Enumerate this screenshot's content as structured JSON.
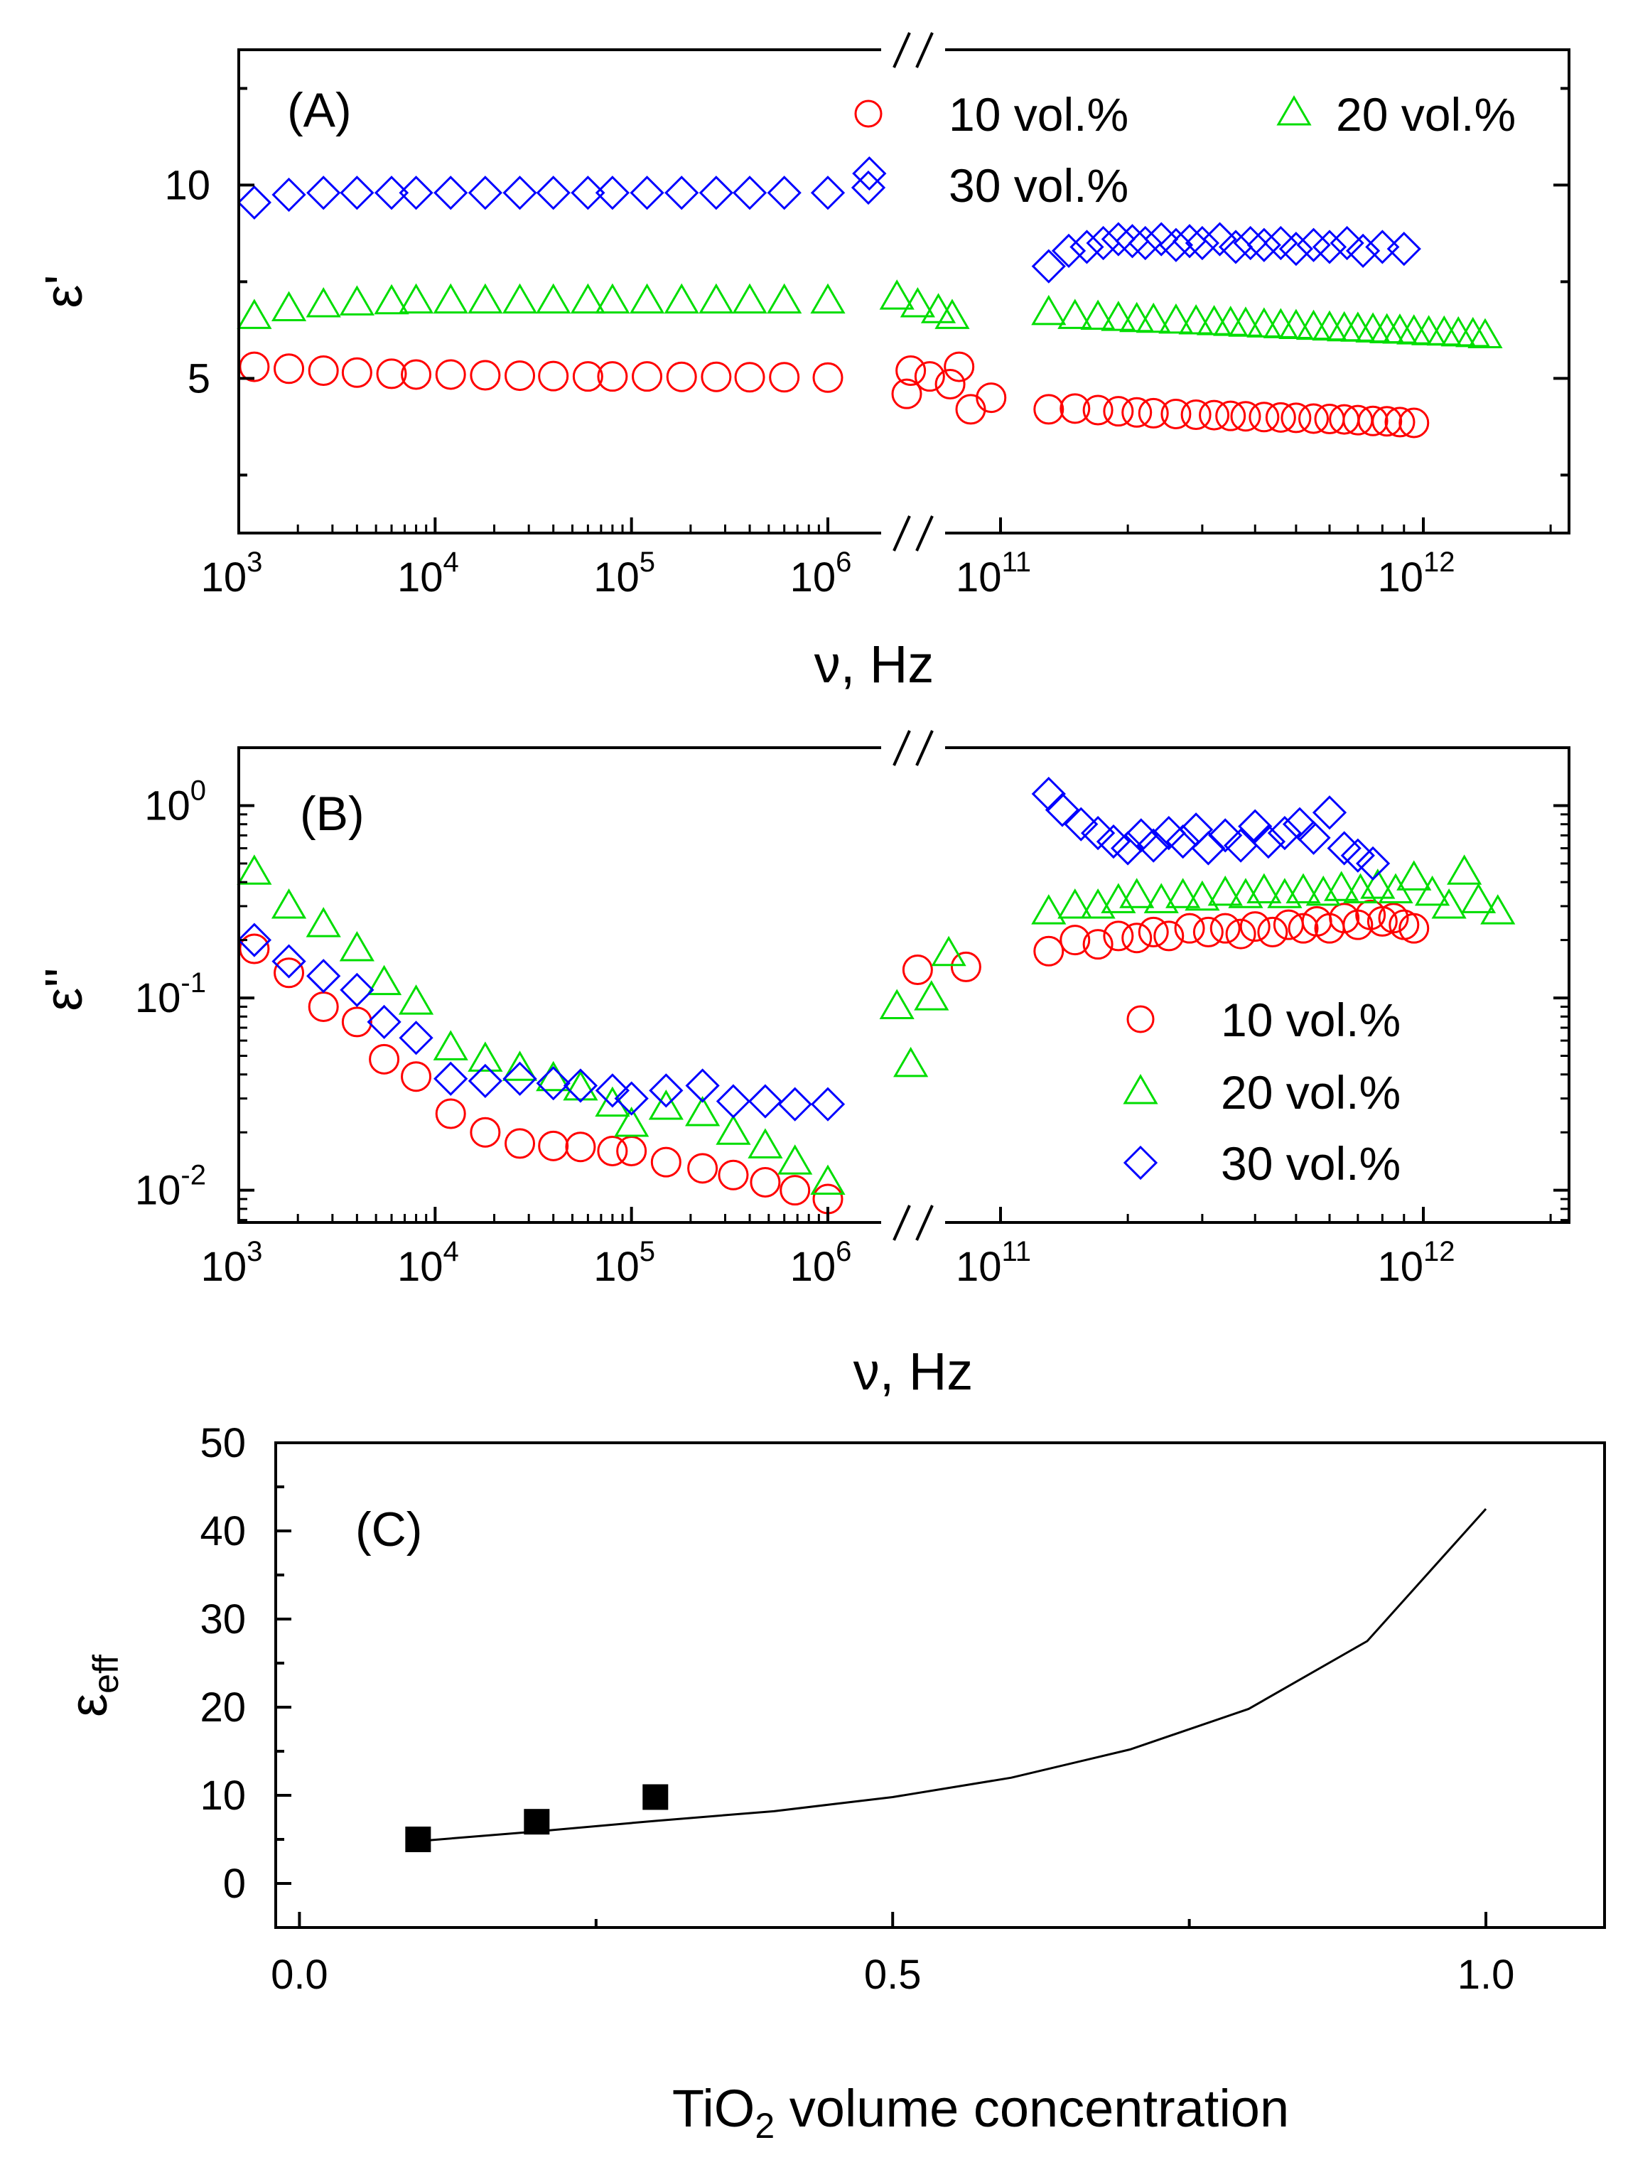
{
  "figure": {
    "background": "#ffffff"
  },
  "colors": {
    "s10": "#ff0000",
    "s20": "#00dd00",
    "s30": "#0000ff",
    "black": "#000000"
  },
  "chart_data": [
    {
      "id": "A",
      "type": "scatter",
      "panel_label": "(A)",
      "xlabel": "ν, Hz",
      "ylabel": "ε'",
      "xscale": "log",
      "xbreak": {
        "low_segment": [
          1000,
          1000000
        ],
        "high_segment": [
          100000000000,
          1000000000000
        ],
        "break_symbol": "//"
      },
      "ylim": [
        1,
        13.5
      ],
      "yticks": [
        5,
        10
      ],
      "xticks": [
        {
          "base": "10",
          "exp": "3",
          "value": 1000
        },
        {
          "base": "10",
          "exp": "4",
          "value": 10000
        },
        {
          "base": "10",
          "exp": "5",
          "value": 100000
        },
        {
          "base": "10",
          "exp": "6",
          "value": 1000000
        },
        {
          "base": "10",
          "exp": "11",
          "value": 100000000000
        },
        {
          "base": "10",
          "exp": "12",
          "value": 1000000000000
        }
      ],
      "legend": [
        {
          "series": "10 vol.%",
          "marker": "circle",
          "color": "#ff0000"
        },
        {
          "series": "20 vol.%",
          "marker": "triangle",
          "color": "#00dd00"
        },
        {
          "series": "30 vol.%",
          "marker": "diamond",
          "color": "#0000ff"
        }
      ],
      "series": [
        {
          "name": "10 vol.%",
          "marker": "circle",
          "color": "#ff0000",
          "low": {
            "x": [
              1200,
              1800,
              2700,
              4000,
              6000,
              8000,
              12000,
              18000,
              27000,
              40000,
              60000,
              80000,
              120000,
              180000,
              270000,
              400000,
              600000,
              1000000
            ],
            "y": [
              5.3,
              5.25,
              5.2,
              5.15,
              5.12,
              5.1,
              5.1,
              5.08,
              5.07,
              5.06,
              5.05,
              5.05,
              5.05,
              5.04,
              5.04,
              5.03,
              5.03,
              5.02
            ]
          },
          "mid": {
            "x": [
              2.2,
              2.9
            ],
            "y": [
              5.2,
              5.3
            ]
          },
          "high": {
            "x": [
              60000000000,
              68000000000,
              76000000000,
              85000000000,
              95000000000,
              130000000000,
              150000000000,
              170000000000,
              190000000000,
              210000000000,
              230000000000,
              260000000000,
              290000000000,
              320000000000,
              350000000000,
              380000000000,
              420000000000,
              460000000000,
              500000000000,
              550000000000,
              600000000000,
              650000000000,
              700000000000,
              760000000000,
              820000000000,
              880000000000,
              950000000000
            ],
            "y": [
              4.6,
              5.05,
              4.85,
              4.2,
              4.5,
              4.2,
              4.22,
              4.18,
              4.15,
              4.12,
              4.1,
              4.08,
              4.06,
              4.05,
              4.03,
              4.02,
              4.0,
              3.99,
              3.98,
              3.96,
              3.95,
              3.94,
              3.92,
              3.9,
              3.89,
              3.87,
              3.85
            ]
          }
        },
        {
          "name": "20 vol.%",
          "marker": "triangle",
          "color": "#00dd00",
          "low": {
            "x": [
              1200,
              1800,
              2700,
              4000,
              6000,
              8000,
              12000,
              18000,
              27000,
              40000,
              60000,
              80000,
              120000,
              180000,
              270000,
              400000,
              600000,
              1000000
            ],
            "y": [
              6.6,
              6.8,
              6.9,
              6.95,
              6.98,
              7.0,
              7.0,
              7.0,
              7.0,
              7.0,
              7.0,
              7.0,
              7.0,
              7.0,
              7.0,
              7.0,
              7.0,
              7.0
            ]
          },
          "mid": {
            "x": [
              2.0,
              2.3,
              2.6,
              2.8
            ],
            "y": [
              7.1,
              6.9,
              6.75,
              6.6
            ]
          },
          "high": {
            "x": [
              130000000000,
              150000000000,
              170000000000,
              190000000000,
              210000000000,
              230000000000,
              260000000000,
              290000000000,
              320000000000,
              350000000000,
              380000000000,
              420000000000,
              460000000000,
              500000000000,
              550000000000,
              600000000000,
              650000000000,
              700000000000,
              760000000000,
              820000000000,
              880000000000,
              950000000000,
              1030000000000,
              1120000000000,
              1210000000000,
              1310000000000,
              1400000000000
            ],
            "y": [
              6.7,
              6.6,
              6.58,
              6.55,
              6.52,
              6.5,
              6.48,
              6.46,
              6.44,
              6.42,
              6.4,
              6.38,
              6.36,
              6.34,
              6.32,
              6.3,
              6.28,
              6.27,
              6.25,
              6.23,
              6.22,
              6.2,
              6.18,
              6.17,
              6.15,
              6.13,
              6.1
            ]
          }
        },
        {
          "name": "30 vol.%",
          "marker": "diamond",
          "color": "#0000ff",
          "low": {
            "x": [
              1200,
              1800,
              2700,
              4000,
              6000,
              8000,
              12000,
              18000,
              27000,
              40000,
              60000,
              80000,
              120000,
              180000,
              270000,
              400000,
              600000,
              1000000
            ],
            "y": [
              9.55,
              9.75,
              9.8,
              9.8,
              9.8,
              9.8,
              9.8,
              9.8,
              9.8,
              9.8,
              9.8,
              9.8,
              9.8,
              9.8,
              9.8,
              9.8,
              9.8,
              9.8
            ]
          },
          "mid": {
            "x": [
              1.6
            ],
            "y": [
              10.3
            ]
          },
          "high": {
            "x": [
              130000000000,
              145000000000,
              160000000000,
              175000000000,
              190000000000,
              205000000000,
              220000000000,
              240000000000,
              260000000000,
              280000000000,
              300000000000,
              330000000000,
              360000000000,
              390000000000,
              420000000000,
              460000000000,
              500000000000,
              550000000000,
              600000000000,
              660000000000,
              720000000000,
              800000000000,
              900000000000
            ],
            "y": [
              7.9,
              8.3,
              8.4,
              8.5,
              8.6,
              8.55,
              8.5,
              8.6,
              8.45,
              8.55,
              8.5,
              8.6,
              8.4,
              8.5,
              8.45,
              8.5,
              8.35,
              8.45,
              8.4,
              8.5,
              8.3,
              8.4,
              8.35
            ]
          }
        }
      ]
    },
    {
      "id": "B",
      "type": "scatter",
      "panel_label": "(B)",
      "xlabel": "ν, Hz",
      "ylabel": "ε''",
      "xscale": "log",
      "yscale": "log",
      "ylim": [
        0.0068,
        2.0
      ],
      "yticks": [
        {
          "base": "10",
          "exp": "0",
          "value": 1
        },
        {
          "base": "10",
          "exp": "-1",
          "value": 0.1
        },
        {
          "base": "10",
          "exp": "-2",
          "value": 0.01
        }
      ],
      "xticks": [
        {
          "base": "10",
          "exp": "3",
          "value": 1000
        },
        {
          "base": "10",
          "exp": "4",
          "value": 10000
        },
        {
          "base": "10",
          "exp": "5",
          "value": 100000
        },
        {
          "base": "10",
          "exp": "6",
          "value": 1000000
        },
        {
          "base": "10",
          "exp": "11",
          "value": 100000000000
        },
        {
          "base": "10",
          "exp": "12",
          "value": 1000000000000
        }
      ],
      "legend": [
        {
          "series": "10 vol.%",
          "marker": "circle",
          "color": "#ff0000"
        },
        {
          "series": "20 vol.%",
          "marker": "triangle",
          "color": "#00dd00"
        },
        {
          "series": "30 vol.%",
          "marker": "diamond",
          "color": "#0000ff"
        }
      ],
      "series": [
        {
          "name": "10 vol.%",
          "marker": "circle",
          "color": "#ff0000",
          "low": {
            "x": [
              1200,
              1800,
              2700,
              4000,
              5500,
              8000,
              12000,
              18000,
              27000,
              40000,
              55000,
              80000,
              100000,
              150000,
              230000,
              330000,
              480000,
              680000,
              1000000
            ],
            "y": [
              0.18,
              0.135,
              0.09,
              0.075,
              0.048,
              0.039,
              0.025,
              0.02,
              0.0175,
              0.017,
              0.0168,
              0.016,
              0.016,
              0.014,
              0.013,
              0.012,
              0.011,
              0.01,
              0.009
            ]
          },
          "mid": {
            "x": [
              2.3,
              3.0
            ],
            "y": [
              0.14,
              0.145
            ]
          },
          "high": {
            "x": [
              130000000000,
              150000000000,
              170000000000,
              190000000000,
              210000000000,
              230000000000,
              250000000000,
              280000000000,
              310000000000,
              340000000000,
              370000000000,
              400000000000,
              440000000000,
              480000000000,
              520000000000,
              560000000000,
              600000000000,
              650000000000,
              700000000000,
              750000000000,
              800000000000,
              850000000000,
              900000000000,
              950000000000
            ],
            "y": [
              0.175,
              0.2,
              0.19,
              0.21,
              0.205,
              0.22,
              0.21,
              0.23,
              0.22,
              0.23,
              0.215,
              0.235,
              0.22,
              0.24,
              0.23,
              0.25,
              0.23,
              0.26,
              0.24,
              0.27,
              0.25,
              0.26,
              0.24,
              0.23
            ]
          }
        },
        {
          "name": "20 vol.%",
          "marker": "triangle",
          "color": "#00dd00",
          "low": {
            "x": [
              1200,
              1800,
              2700,
              4000,
              5500,
              8000,
              12000,
              18000,
              27000,
              40000,
              55000,
              80000,
              100000,
              150000,
              230000,
              330000,
              480000,
              680000,
              1000000
            ],
            "y": [
              0.45,
              0.3,
              0.24,
              0.18,
              0.12,
              0.095,
              0.055,
              0.048,
              0.043,
              0.038,
              0.034,
              0.028,
              0.022,
              0.027,
              0.025,
              0.02,
              0.017,
              0.014,
              0.011
            ]
          },
          "mid": {
            "x": [
              2.0,
              2.2,
              2.5,
              2.75
            ],
            "y": [
              0.09,
              0.045,
              0.1,
              0.17
            ]
          },
          "high": {
            "x": [
              130000000000,
              150000000000,
              170000000000,
              190000000000,
              210000000000,
              240000000000,
              270000000000,
              300000000000,
              340000000000,
              380000000000,
              420000000000,
              470000000000,
              520000000000,
              580000000000,
              640000000000,
              710000000000,
              780000000000,
              860000000000,
              950000000000,
              1050000000000,
              1150000000000,
              1250000000000,
              1350000000000,
              1500000000000
            ],
            "y": [
              0.28,
              0.3,
              0.3,
              0.32,
              0.34,
              0.32,
              0.34,
              0.33,
              0.35,
              0.34,
              0.36,
              0.34,
              0.36,
              0.35,
              0.37,
              0.36,
              0.38,
              0.36,
              0.42,
              0.35,
              0.3,
              0.45,
              0.32,
              0.28
            ]
          }
        },
        {
          "name": "30 vol.%",
          "marker": "diamond",
          "color": "#0000ff",
          "low": {
            "x": [
              1200,
              1800,
              2700,
              4000,
              5500,
              8000,
              12000,
              18000,
              27000,
              40000,
              55000,
              80000,
              100000,
              150000,
              230000,
              330000,
              480000,
              680000,
              1000000
            ],
            "y": [
              0.2,
              0.155,
              0.13,
              0.11,
              0.075,
              0.062,
              0.038,
              0.037,
              0.038,
              0.036,
              0.035,
              0.033,
              0.03,
              0.033,
              0.035,
              0.029,
              0.029,
              0.028,
              0.028
            ]
          },
          "high": {
            "x": [
              130000000000,
              140000000000,
              155000000000,
              170000000000,
              185000000000,
              200000000000,
              215000000000,
              230000000000,
              250000000000,
              270000000000,
              290000000000,
              310000000000,
              340000000000,
              370000000000,
              400000000000,
              430000000000,
              470000000000,
              510000000000,
              550000000000,
              600000000000,
              650000000000,
              700000000000,
              760000000000
            ],
            "y": [
              1.15,
              0.95,
              0.8,
              0.72,
              0.65,
              0.6,
              0.7,
              0.62,
              0.72,
              0.65,
              0.75,
              0.6,
              0.7,
              0.62,
              0.78,
              0.65,
              0.72,
              0.8,
              0.68,
              0.92,
              0.6,
              0.55,
              0.5
            ]
          }
        }
      ]
    },
    {
      "id": "C",
      "type": "line",
      "panel_label": "(C)",
      "xlabel_prefix": "TiO",
      "xlabel_sub": "2",
      "xlabel_suffix": " volume concentration",
      "ylabel_main": "ε",
      "ylabel_sub": "eff",
      "xlim": [
        -0.02,
        1.1
      ],
      "ylim": [
        -5,
        50
      ],
      "xticks": [
        {
          "label": "0.0",
          "value": 0
        },
        {
          "label": "0.5",
          "value": 0.5
        },
        {
          "label": "1.0",
          "value": 1.0
        }
      ],
      "yticks": [
        {
          "label": "0",
          "value": 0
        },
        {
          "label": "10",
          "value": 10
        },
        {
          "label": "20",
          "value": 20
        },
        {
          "label": "30",
          "value": 30
        },
        {
          "label": "40",
          "value": 40
        },
        {
          "label": "50",
          "value": 50
        }
      ],
      "line": {
        "x": [
          0.1,
          0.2,
          0.3,
          0.4,
          0.5,
          0.6,
          0.7,
          0.8,
          0.9,
          1.0
        ],
        "y": [
          4.8,
          5.9,
          7.1,
          8.2,
          9.8,
          12.0,
          15.2,
          19.8,
          27.5,
          42.5
        ]
      },
      "points": {
        "x": [
          0.1,
          0.2,
          0.3
        ],
        "y": [
          5.0,
          7.0,
          9.8
        ]
      }
    }
  ]
}
